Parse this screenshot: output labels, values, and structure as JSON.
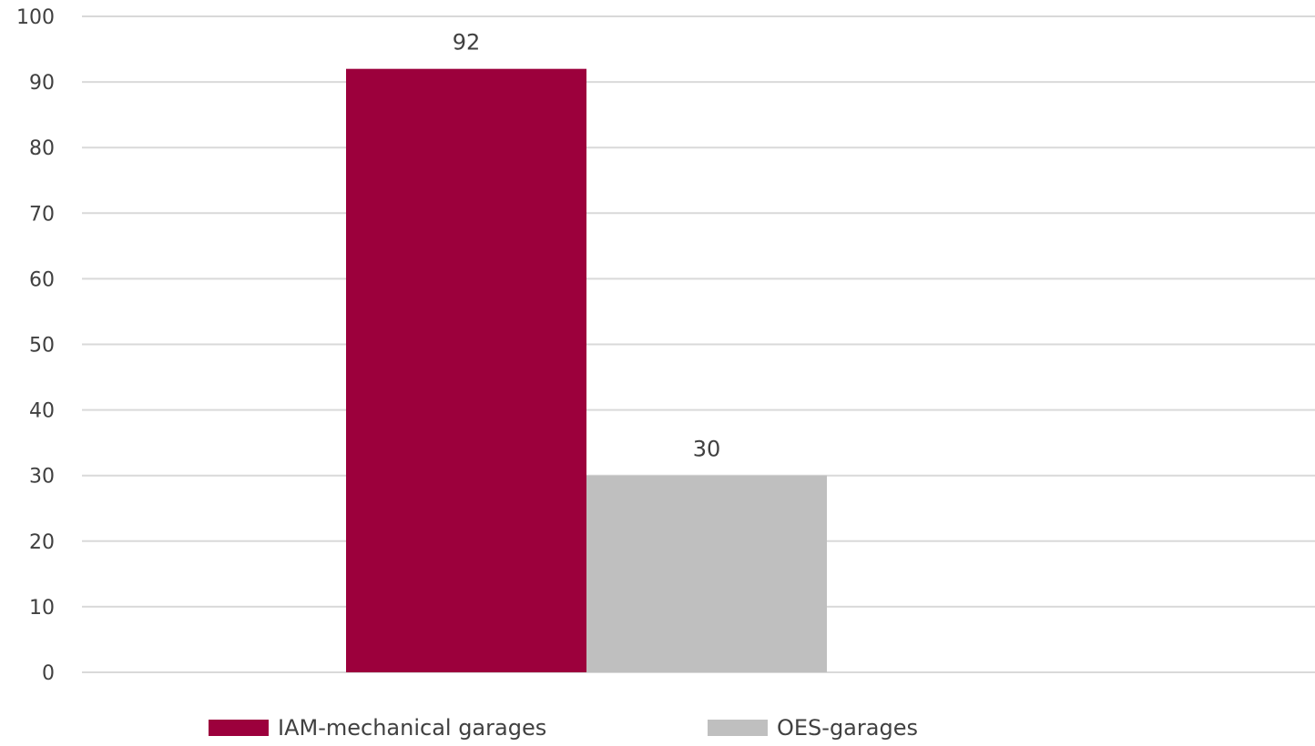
{
  "chart_data": {
    "type": "bar",
    "title": "",
    "xlabel": "",
    "ylabel": "",
    "categories": [
      ""
    ],
    "ylim": [
      0,
      100
    ],
    "yticks": [
      0,
      10,
      20,
      30,
      40,
      50,
      60,
      70,
      80,
      90,
      100
    ],
    "grid": true,
    "legend_position": "bottom",
    "data_labels": true,
    "series": [
      {
        "name": "IAM-mechanical garages",
        "values": [
          92
        ],
        "color": "#9c003c"
      },
      {
        "name": "OES-garages",
        "values": [
          30
        ],
        "color": "#bfbfbf"
      }
    ]
  }
}
